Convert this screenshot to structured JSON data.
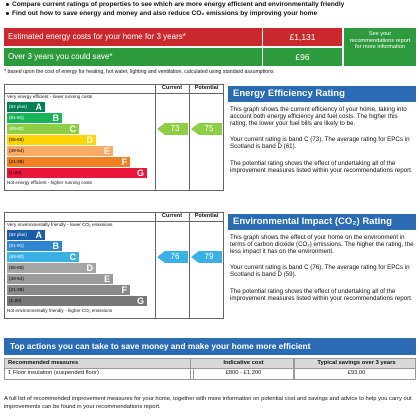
{
  "header": {
    "bullets": [
      "Compare current ratings of properties to see which are more energy efficient and environmentally friendly",
      "Find out how to save energy and money and also reduce CO₂ emissions by improving your home"
    ]
  },
  "costs": {
    "estimated_label": "Estimated energy costs for your home for 3 years*",
    "estimated_value": "£1,131",
    "save_label": "Over 3 years you could save*",
    "save_value": "£96",
    "note": "See your recommendations report for more information",
    "footnote": "* based upon the cost of energy for heating, hot water, lighting and ventilation, calculated using standard assumptions"
  },
  "energy_efficiency": {
    "title": "Energy Efficiency Rating",
    "current_header": "Current",
    "potential_header": "Potential",
    "top_label": "Very energy efficient - lower running costs",
    "bottom_label": "Not energy efficient - higher running costs",
    "bands": [
      {
        "range": "(92 plus)",
        "letter": "A"
      },
      {
        "range": "(81-91)",
        "letter": "B"
      },
      {
        "range": "(69-80)",
        "letter": "C"
      },
      {
        "range": "(55-68)",
        "letter": "D"
      },
      {
        "range": "(39-54)",
        "letter": "E"
      },
      {
        "range": "(21-38)",
        "letter": "F"
      },
      {
        "range": "(1-20)",
        "letter": "G"
      }
    ],
    "current": 73,
    "potential": 75,
    "paragraphs": [
      "This graph shows the current efficiency of your home, taking into account both energy efficiency and fuel costs. The higher this rating, the lower your fuel bills are likely to be.",
      "Your current rating is band C (73). The average rating for EPCs in Scotland is band D (61).",
      "The potential rating shows the effect of undertaking all of the improvement measures listed within your recommendations report."
    ]
  },
  "environmental_impact": {
    "title": "Environmental Impact (CO₂) Rating",
    "current_header": "Current",
    "potential_header": "Potential",
    "top_label": "Very environmentally friendly - lower CO₂ emissions",
    "bottom_label": "Not environmentally friendly - higher CO₂ emissions",
    "bands": [
      {
        "range": "(92 plus)",
        "letter": "A"
      },
      {
        "range": "(81-91)",
        "letter": "B"
      },
      {
        "range": "(69-80)",
        "letter": "C"
      },
      {
        "range": "(55-68)",
        "letter": "D"
      },
      {
        "range": "(39-54)",
        "letter": "E"
      },
      {
        "range": "(21-38)",
        "letter": "F"
      },
      {
        "range": "(1-20)",
        "letter": "G"
      }
    ],
    "current": 76,
    "potential": 79,
    "paragraphs": [
      "This graph shows the effect of your home on the environment in terms of carbon dioxide (CO₂) emissions. The higher the rating, the less impact it has on the environment.",
      "Your current rating is band C (76). The average rating for EPCs in Scotland is band D (59).",
      "The potential rating shows the effect of undertaking all of the improvement measures listed within your recommendations report."
    ]
  },
  "actions": {
    "title": "Top actions you can take to save money and make your home more efficient",
    "columns": [
      "Recommended measures",
      "Indicative cost",
      "Typical savings over 3 years"
    ],
    "rows": [
      [
        "1 Floor insulation (suspended floor)",
        "£800 - £1,200",
        "£93.00"
      ]
    ]
  },
  "footer": "A full list of recommended improvement measures for your home, together with more information on potential cost and savings and advice to help you carry out improvements can be found in your recommendations report."
}
